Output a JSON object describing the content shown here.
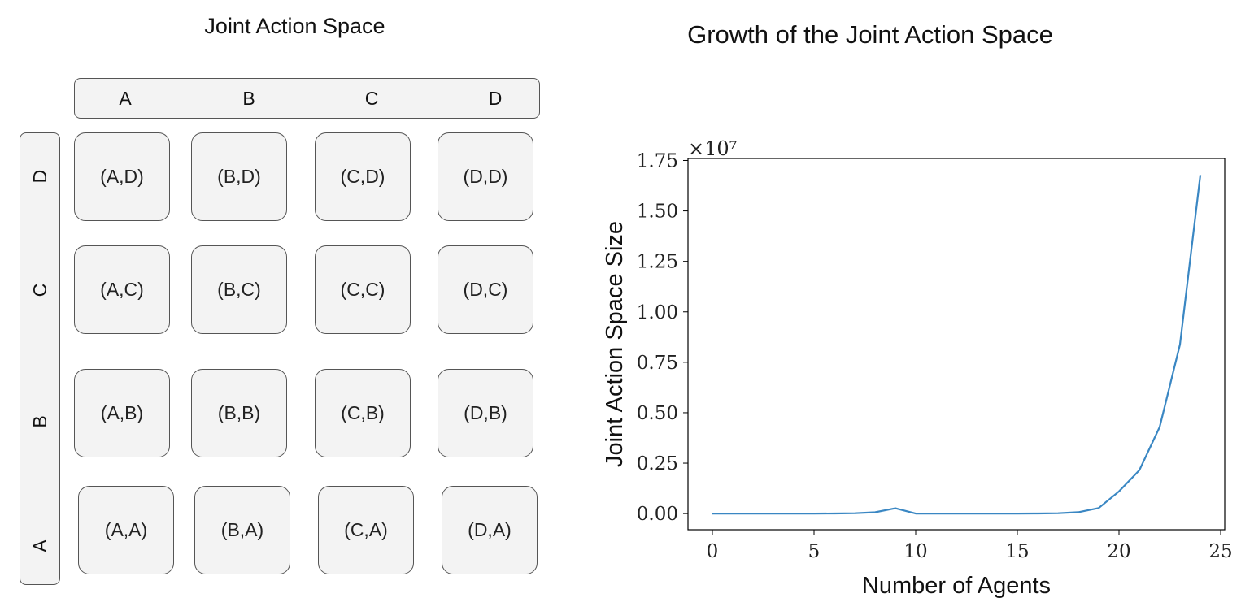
{
  "matrix": {
    "title": "Joint Action Space",
    "columns": [
      "A",
      "B",
      "C",
      "D"
    ],
    "rows": [
      "D",
      "C",
      "B",
      "A"
    ],
    "cells": [
      [
        "(A,D)",
        "(B,D)",
        "(C,D)",
        "(D,D)"
      ],
      [
        "(A,C)",
        "(B,C)",
        "(C,C)",
        "(D,C)"
      ],
      [
        "(A,B)",
        "(B,B)",
        "(C,B)",
        "(D,B)"
      ],
      [
        "(A,A)",
        "(B,A)",
        "(C,A)",
        "(D,A)"
      ]
    ]
  },
  "chart_data": {
    "type": "line",
    "title": "Growth of the Joint Action Space",
    "xlabel": "Number of Agents",
    "ylabel": "Joint Action Space Size",
    "offset_text": "×10⁷",
    "xlim": [
      -1.2,
      25.2
    ],
    "ylim": [
      -0.08,
      1.76
    ],
    "xticks": [
      0,
      5,
      10,
      15,
      20,
      25
    ],
    "yticks": [
      "0.00",
      "0.25",
      "0.50",
      "0.75",
      "1.00",
      "1.25",
      "1.50",
      "1.75"
    ],
    "x": [
      0,
      1,
      2,
      3,
      4,
      5,
      6,
      7,
      8,
      9,
      10,
      11,
      12,
      13,
      14,
      15,
      16,
      17,
      18,
      19,
      20,
      21,
      22,
      23,
      24
    ],
    "series": [
      {
        "values": [
          1e-07,
          4e-07,
          1.6e-06,
          6.4e-06,
          2.56e-05,
          0.0001024,
          0.0004096,
          0.0016384,
          0.0065536,
          0.0262144,
          1e-07,
          4e-07,
          1.7e-06,
          6.7e-06,
          2.68e-05,
          0.0001074,
          0.0004295,
          0.001718,
          0.0068719,
          0.0274878,
          0.1099512,
          0.2147484,
          0.4294967,
          0.8388608,
          1.6777216
        ],
        "color": "#3a87c3"
      }
    ],
    "grid": false
  }
}
